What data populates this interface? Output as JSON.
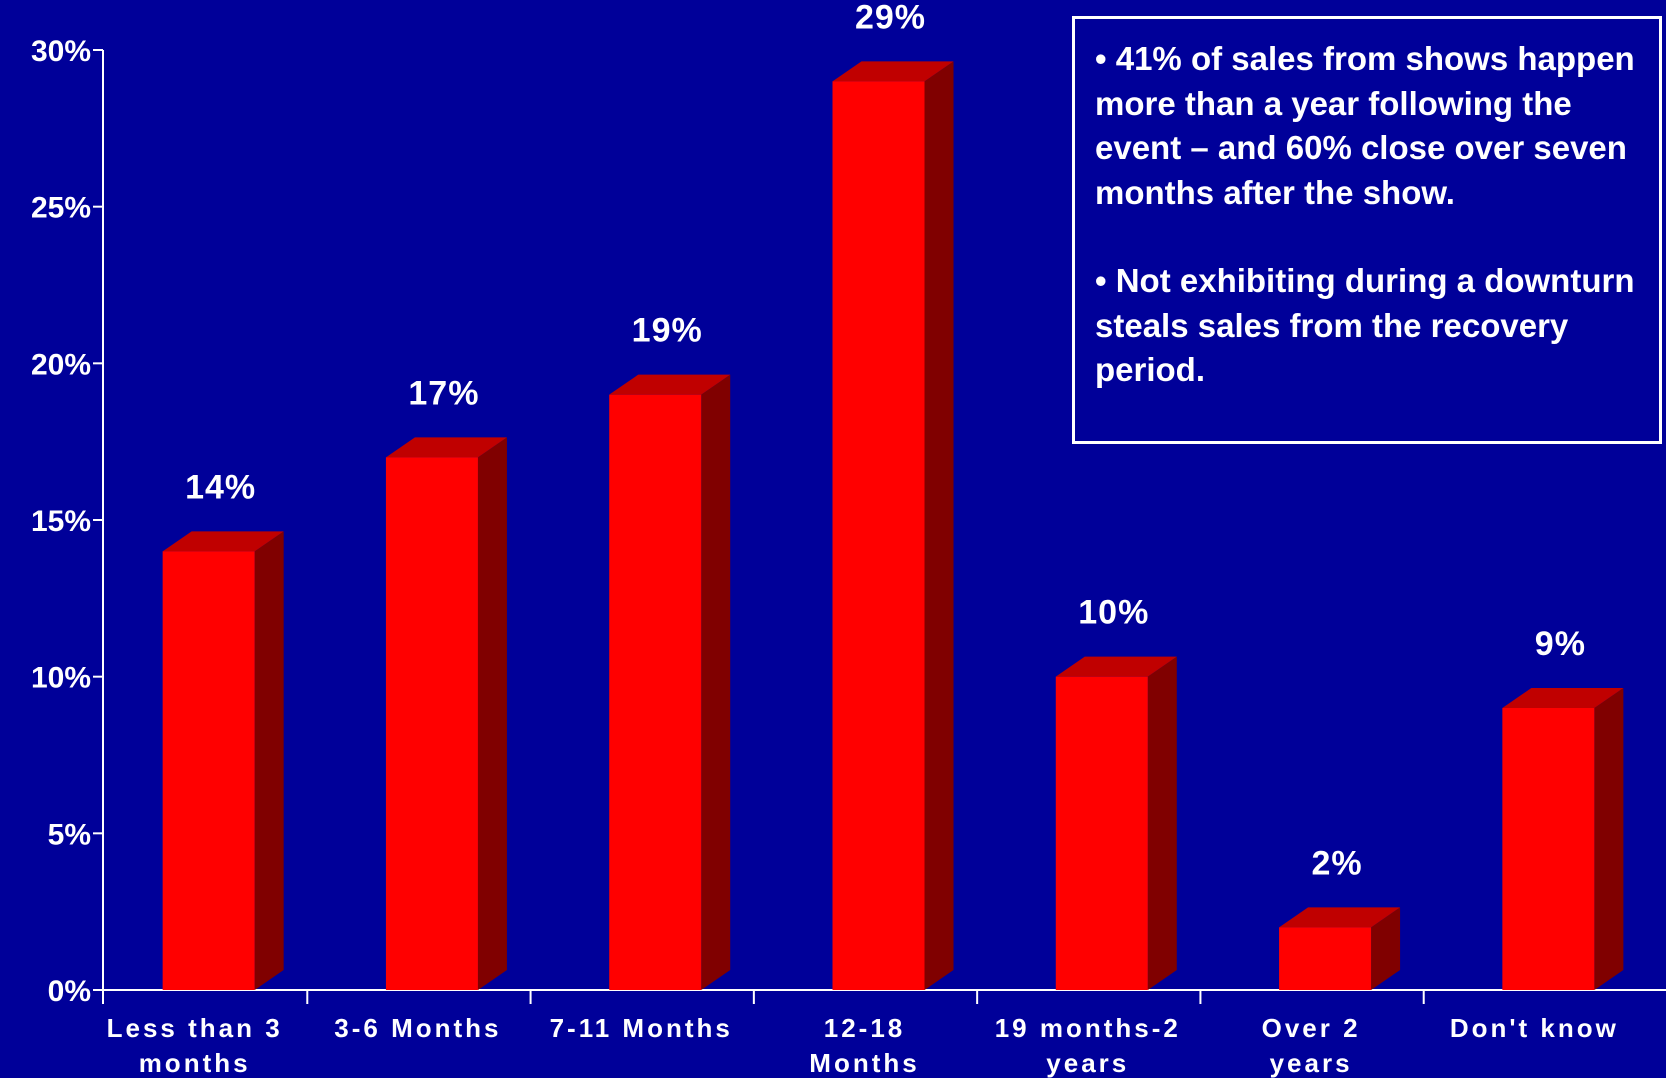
{
  "chart_data": {
    "type": "bar",
    "categories": [
      [
        "Less than 3",
        "months"
      ],
      [
        "3-6 Months"
      ],
      [
        "7-11 Months"
      ],
      [
        "12-18",
        "Months"
      ],
      [
        "19 months-2",
        "years"
      ],
      [
        "Over 2",
        "years"
      ],
      [
        "Don't know"
      ]
    ],
    "values": [
      14,
      17,
      19,
      29,
      10,
      2,
      9
    ],
    "value_labels": [
      "14%",
      "17%",
      "19%",
      "29%",
      "10%",
      "2%",
      "9%"
    ],
    "ylim": [
      0,
      30
    ],
    "yticks": [
      0,
      5,
      10,
      15,
      20,
      25,
      30
    ],
    "ytick_labels": [
      "0%",
      "5%",
      "10%",
      "15%",
      "20%",
      "25%",
      "30%"
    ],
    "title": "",
    "xlabel": "",
    "ylabel": "",
    "grid": false,
    "style": "3d-bar",
    "colors": {
      "background": "#000099",
      "bar_front": "#ff0000",
      "bar_top": "#c00000",
      "bar_side": "#800000",
      "axis": "#ffffff",
      "text": "#ffffff"
    }
  },
  "callout": {
    "bullets": [
      "• 41% of sales from shows happen more than a year following the event – and 60% close over seven months after the show.",
      "• Not exhibiting during a downturn steals sales from the recovery period."
    ]
  }
}
